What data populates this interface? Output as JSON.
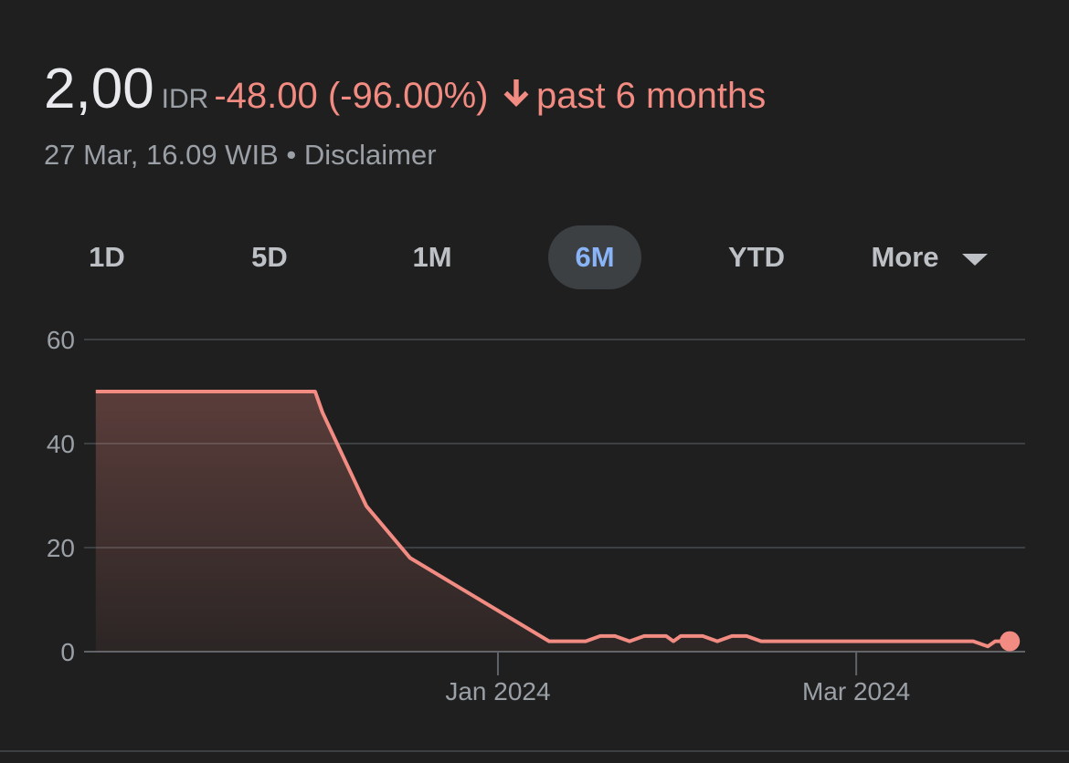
{
  "header": {
    "price": "2,00",
    "currency": "IDR",
    "change": "-48.00 (-96.00%)",
    "period": "past 6 months",
    "timestamp": "27 Mar, 16.09 WIB",
    "separator": "•",
    "disclaimer": "Disclaimer"
  },
  "tabs": [
    "1D",
    "5D",
    "1M",
    "6M",
    "YTD",
    "More"
  ],
  "selected_tab": "6M",
  "chart_data": {
    "type": "area",
    "x": [
      0,
      30,
      31,
      34,
      37,
      43,
      62,
      67,
      69,
      71,
      73,
      75,
      78,
      79,
      80,
      83,
      85,
      87,
      89,
      91,
      120,
      122,
      123,
      125
    ],
    "series": [
      {
        "color": "#f28b82",
        "values": [
          50,
          50,
          46,
          37,
          28,
          18,
          2,
          2,
          3,
          3,
          2,
          3,
          3,
          2,
          3,
          3,
          2,
          3,
          3,
          2,
          2,
          1,
          2,
          2
        ]
      }
    ],
    "xlim": [
      -3.1,
      127.1
    ],
    "xticks": [
      {
        "value": 55,
        "label": "Jan 2024"
      },
      {
        "value": 104,
        "label": "Mar 2024"
      }
    ],
    "ylim": [
      0,
      60
    ],
    "yticks": [
      0,
      20,
      40,
      60
    ],
    "grid": true
  }
}
